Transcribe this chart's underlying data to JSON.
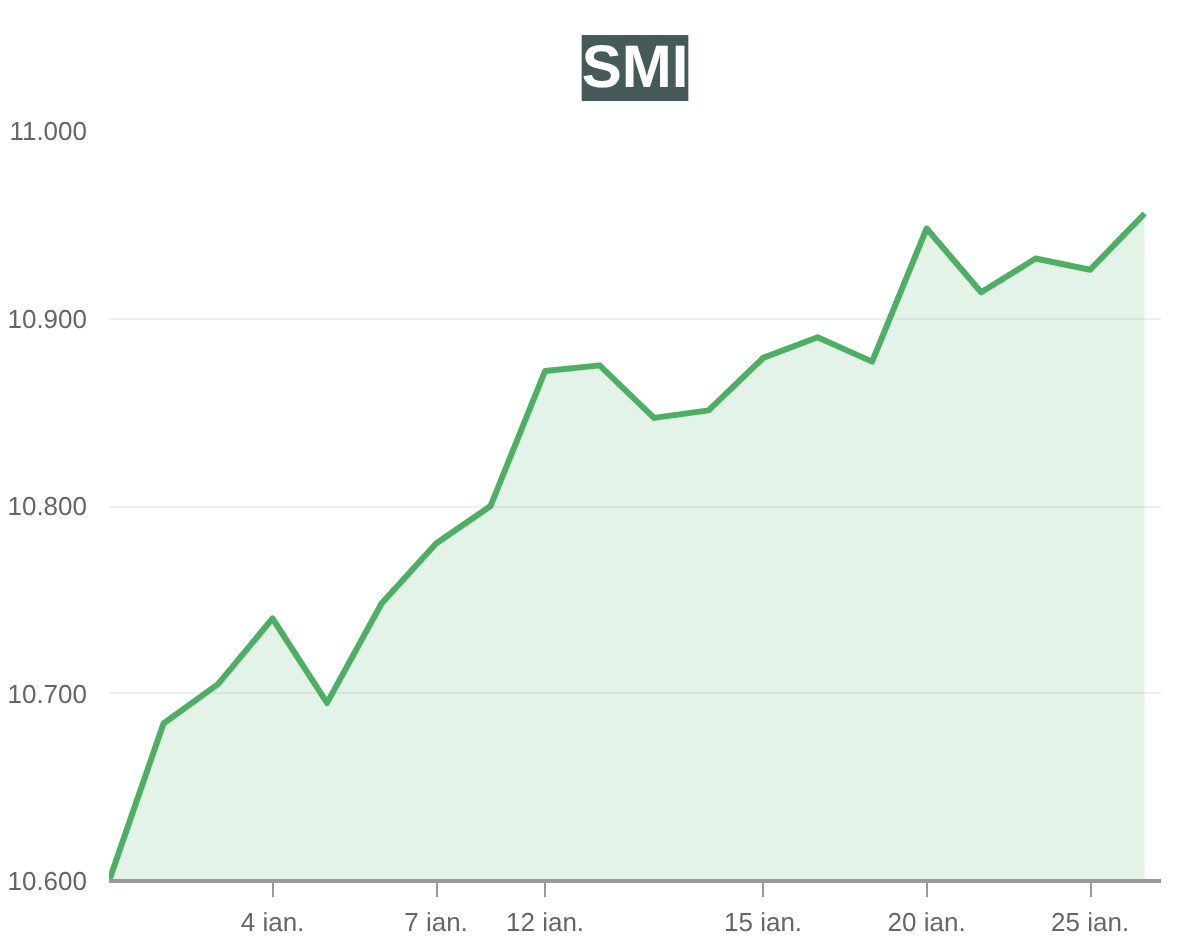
{
  "chart_data": {
    "type": "area",
    "title": "SMI",
    "categories": [
      null,
      null,
      null,
      "4 ian.",
      null,
      null,
      "7 ian.",
      null,
      "12 ian.",
      null,
      null,
      null,
      "15 ian.",
      null,
      null,
      "20 ian.",
      null,
      null,
      "25 ian.",
      null
    ],
    "series": [
      {
        "color": "#4caf63",
        "values": [
          10600,
          10684,
          10705,
          10740,
          10695,
          10748,
          10780,
          10800,
          10872,
          10875,
          10847,
          10851,
          10879,
          10890,
          10877,
          10948,
          10914,
          10932,
          10926,
          10956
        ]
      }
    ],
    "ylim": [
      10600,
      11000
    ],
    "yticks": [
      {
        "value": 10600,
        "label": "10.600"
      },
      {
        "value": 10700,
        "label": "10.700"
      },
      {
        "value": 10800,
        "label": "10.800"
      },
      {
        "value": 10900,
        "label": "10.900"
      },
      {
        "value": 11000,
        "label": "11.000"
      }
    ],
    "grid": "y"
  }
}
